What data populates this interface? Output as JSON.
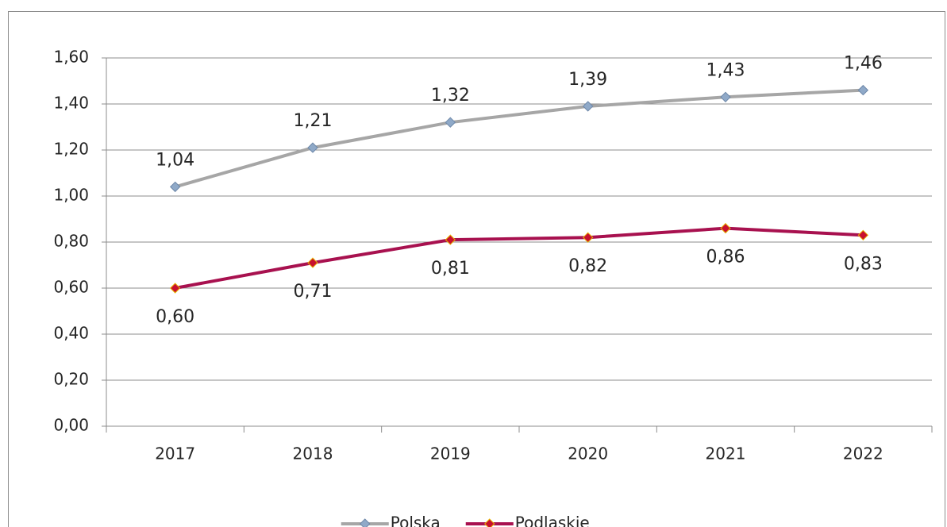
{
  "chart_data": {
    "type": "line",
    "categories": [
      "2017",
      "2018",
      "2019",
      "2020",
      "2021",
      "2022"
    ],
    "series": [
      {
        "name": "Polska",
        "color": "#a6a6a6",
        "marker_color": "#8fa9c8",
        "values": [
          1.04,
          1.21,
          1.32,
          1.39,
          1.43,
          1.46
        ],
        "value_labels": [
          "1,04",
          "1,21",
          "1,32",
          "1,39",
          "1,43",
          "1,46"
        ]
      },
      {
        "name": "Podlaskie",
        "color": "#a8114f",
        "marker_color": "#c8102e",
        "values": [
          0.6,
          0.71,
          0.81,
          0.82,
          0.86,
          0.83
        ],
        "value_labels": [
          "0,60",
          "0,71",
          "0,81",
          "0,82",
          "0,86",
          "0,83"
        ]
      }
    ],
    "ylim": [
      0,
      1.6
    ],
    "yticks": [
      {
        "value": 0,
        "label": "0,00"
      },
      {
        "value": 0.2,
        "label": "0,20"
      },
      {
        "value": 0.4,
        "label": "0,40"
      },
      {
        "value": 0.6,
        "label": "0,60"
      },
      {
        "value": 0.8,
        "label": "0,80"
      },
      {
        "value": 1.0,
        "label": "1,00"
      },
      {
        "value": 1.2,
        "label": "1,20"
      },
      {
        "value": 1.4,
        "label": "1,40"
      },
      {
        "value": 1.6,
        "label": "1,60"
      }
    ],
    "grid": true,
    "legend": "bottom"
  }
}
